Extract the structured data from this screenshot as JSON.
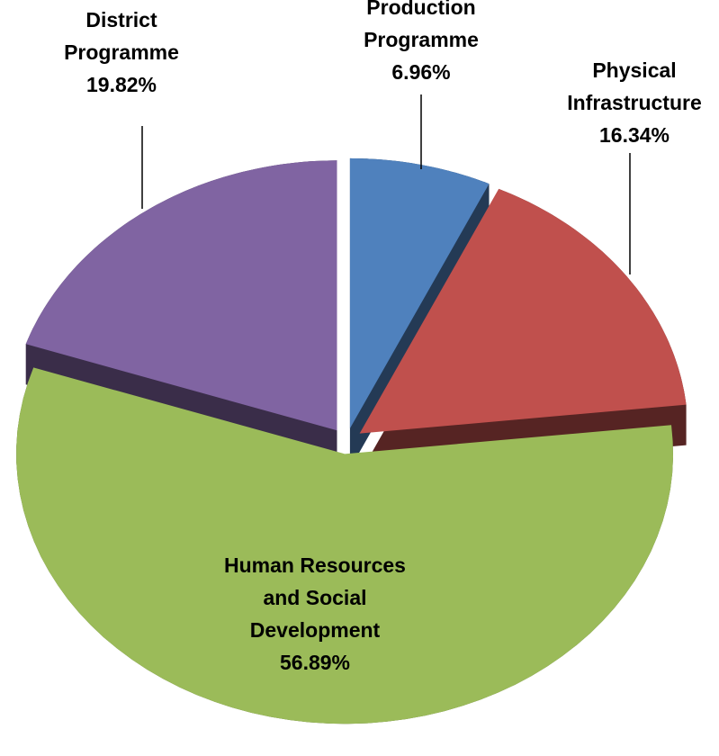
{
  "chart_data": {
    "type": "pie",
    "categories": [
      "Production Programme",
      "Physical Infrastructure",
      "Human Resources and Social Development",
      "District Programme"
    ],
    "values": [
      6.96,
      16.34,
      56.89,
      19.82
    ],
    "value_labels": [
      "6.96%",
      "16.34%",
      "56.89%",
      "19.82%"
    ],
    "colors": [
      "#4f81bd",
      "#c0504d",
      "#9bbb59",
      "#8064a2"
    ]
  }
}
